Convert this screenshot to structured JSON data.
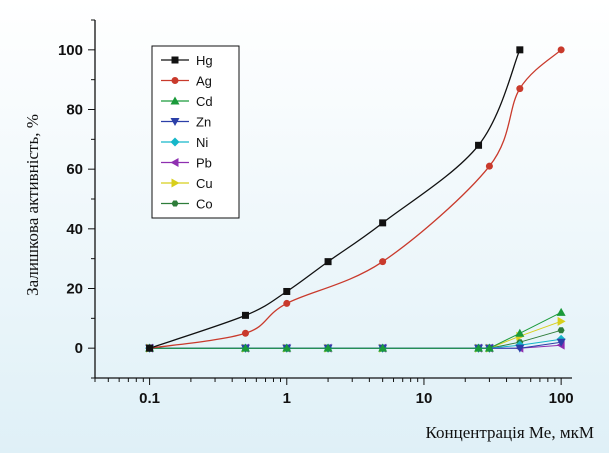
{
  "chart_data": {
    "type": "line",
    "title": "",
    "xlabel": "Концентрація Ме, мкМ",
    "ylabel": "Залишкова активність, %",
    "x_scale": "log",
    "xlim": [
      0.04,
      120
    ],
    "ylim": [
      -10,
      110
    ],
    "x_ticks": [
      0.1,
      1,
      10,
      100
    ],
    "x_tick_labels": [
      "0.1",
      "1",
      "10",
      "100"
    ],
    "y_ticks": [
      0,
      20,
      40,
      60,
      80,
      100
    ],
    "y_tick_labels": [
      "0",
      "20",
      "40",
      "60",
      "80",
      "100"
    ],
    "legend_position": "top-left",
    "series": [
      {
        "name": "Hg",
        "color": "#111111",
        "marker": "square",
        "curve": true,
        "x": [
          0.1,
          0.5,
          1,
          2,
          5,
          25,
          50
        ],
        "y": [
          0,
          11,
          19,
          29,
          42,
          68,
          100
        ]
      },
      {
        "name": "Ag",
        "color": "#c93a2c",
        "marker": "circle",
        "curve": true,
        "x": [
          0.1,
          0.5,
          1,
          5,
          30,
          50,
          100
        ],
        "y": [
          0,
          5,
          15,
          29,
          61,
          87,
          100
        ]
      },
      {
        "name": "Cd",
        "color": "#1a9a3a",
        "marker": "triangle-up",
        "x": [
          0.1,
          0.5,
          1,
          2,
          5,
          25,
          30,
          50,
          100
        ],
        "y": [
          0,
          0,
          0,
          0,
          0,
          0,
          0,
          5,
          12
        ]
      },
      {
        "name": "Zn",
        "color": "#2b3fa8",
        "marker": "triangle-down",
        "x": [
          0.1,
          0.5,
          1,
          2,
          5,
          25,
          30,
          50,
          100
        ],
        "y": [
          0,
          0,
          0,
          0,
          0,
          0,
          0,
          0,
          2
        ]
      },
      {
        "name": "Ni",
        "color": "#16b7c9",
        "marker": "diamond",
        "x": [
          0.1,
          0.5,
          1,
          2,
          5,
          25,
          30,
          50,
          100
        ],
        "y": [
          0,
          0,
          0,
          0,
          0,
          0,
          0,
          1,
          3
        ]
      },
      {
        "name": "Pb",
        "color": "#8e2fb0",
        "marker": "triangle-left",
        "x": [
          0.1,
          0.5,
          1,
          2,
          5,
          25,
          30,
          50,
          100
        ],
        "y": [
          0,
          0,
          0,
          0,
          0,
          0,
          0,
          0,
          1
        ]
      },
      {
        "name": "Cu",
        "color": "#d8cf1c",
        "marker": "triangle-right",
        "x": [
          0.1,
          0.5,
          1,
          2,
          5,
          25,
          30,
          50,
          100
        ],
        "y": [
          0,
          0,
          0,
          0,
          0,
          0,
          0,
          4,
          9
        ]
      },
      {
        "name": "Co",
        "color": "#2e7d3a",
        "marker": "hexagon",
        "x": [
          0.1,
          0.5,
          1,
          2,
          5,
          25,
          30,
          50,
          100
        ],
        "y": [
          0,
          0,
          0,
          0,
          0,
          0,
          0,
          2,
          6
        ]
      }
    ]
  }
}
